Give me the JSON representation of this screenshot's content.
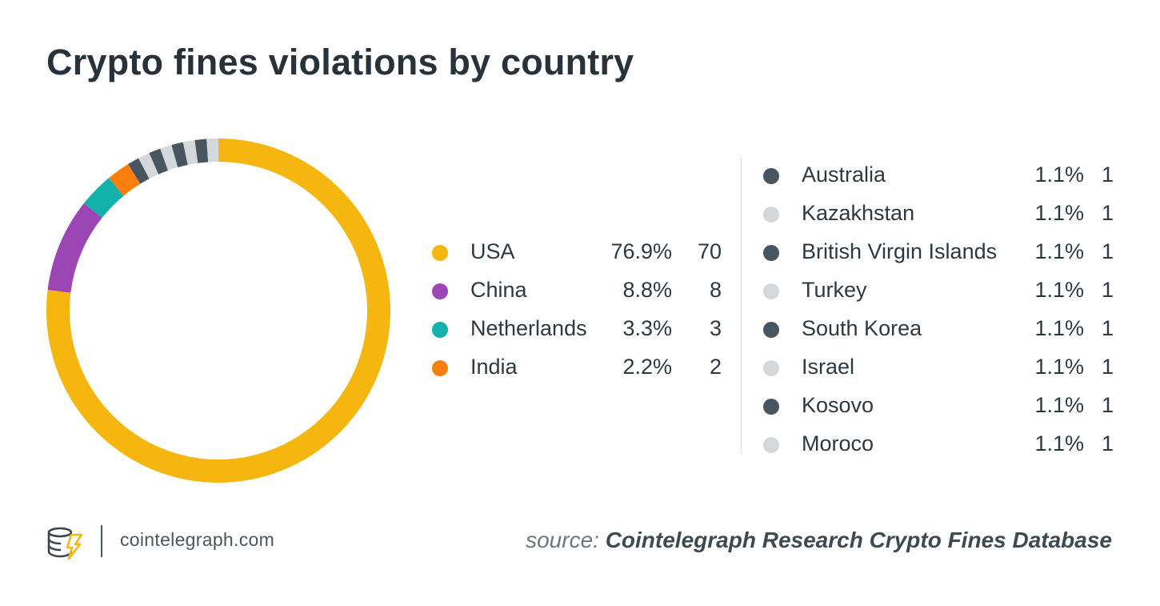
{
  "title": "Crypto fines violations by country",
  "chart_data": {
    "type": "pie",
    "variant": "donut",
    "title": "Crypto fines violations by country",
    "categories": [
      "USA",
      "China",
      "Netherlands",
      "India",
      "Australia",
      "Kazakhstan",
      "British Virgin Islands",
      "Turkey",
      "South Korea",
      "Israel",
      "Kosovo",
      "Moroco"
    ],
    "values": [
      70,
      8,
      3,
      2,
      1,
      1,
      1,
      1,
      1,
      1,
      1,
      1
    ],
    "percentages": [
      "76.9%",
      "8.8%",
      "3.3%",
      "2.2%",
      "1.1%",
      "1.1%",
      "1.1%",
      "1.1%",
      "1.1%",
      "1.1%",
      "1.1%",
      "1.1%"
    ],
    "colors": [
      "#f5b70f",
      "#9c46b6",
      "#12b1a9",
      "#fb7f0e",
      "#46555f",
      "#d5d8db",
      "#46555f",
      "#d5d8db",
      "#46555f",
      "#d5d8db",
      "#46555f",
      "#d5d8db"
    ],
    "legend_position": "right",
    "direction": "clockwise from top"
  },
  "legend": {
    "left": [
      {
        "name": "USA",
        "pct": "76.9%",
        "count": "70",
        "color": "#f5b70f"
      },
      {
        "name": "China",
        "pct": "8.8%",
        "count": "8",
        "color": "#9c46b6"
      },
      {
        "name": "Netherlands",
        "pct": "3.3%",
        "count": "3",
        "color": "#12b1a9"
      },
      {
        "name": "India",
        "pct": "2.2%",
        "count": "2",
        "color": "#fb7f0e"
      }
    ],
    "right": [
      {
        "name": "Australia",
        "pct": "1.1%",
        "count": "1",
        "color": "#46555f"
      },
      {
        "name": "Kazakhstan",
        "pct": "1.1%",
        "count": "1",
        "color": "#d5d8db"
      },
      {
        "name": "British Virgin Islands",
        "pct": "1.1%",
        "count": "1",
        "color": "#46555f"
      },
      {
        "name": "Turkey",
        "pct": "1.1%",
        "count": "1",
        "color": "#d5d8db"
      },
      {
        "name": "South Korea",
        "pct": "1.1%",
        "count": "1",
        "color": "#46555f"
      },
      {
        "name": "Israel",
        "pct": "1.1%",
        "count": "1",
        "color": "#d5d8db"
      },
      {
        "name": "Kosovo",
        "pct": "1.1%",
        "count": "1",
        "color": "#46555f"
      },
      {
        "name": "Moroco",
        "pct": "1.1%",
        "count": "1",
        "color": "#d5d8db"
      }
    ]
  },
  "footer": {
    "logo_icon": "cointelegraph-logo-icon",
    "site": "cointelegraph.com",
    "source_label": "source:",
    "source_name": "Cointelegraph Research Crypto Fines Database"
  },
  "colors": {
    "logo_yellow": "#f5b70f",
    "logo_dark": "#3a454d"
  }
}
